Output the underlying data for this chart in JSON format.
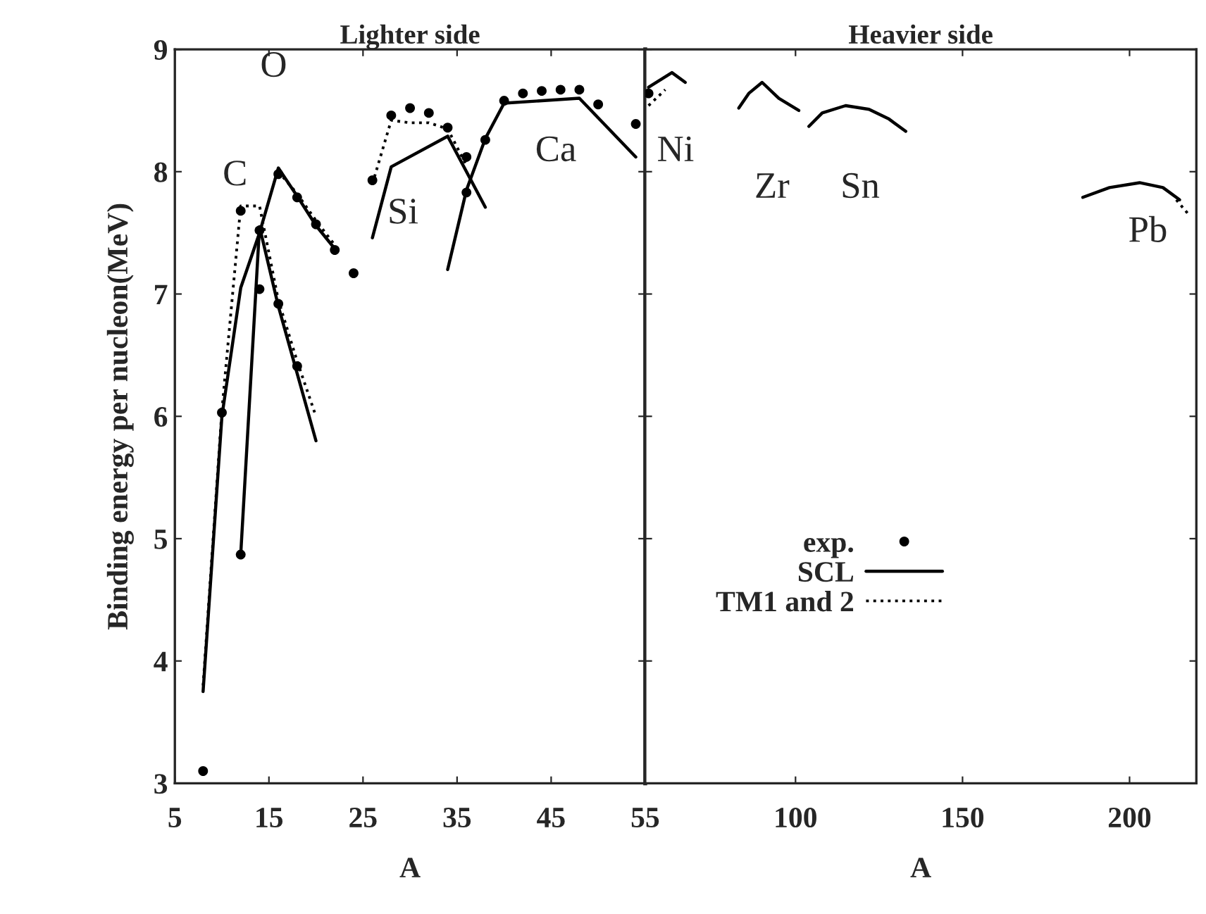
{
  "chart_data": [
    {
      "type": "line",
      "title": "Lighter side",
      "xlabel": "A",
      "ylabel": "Binding energy per nucleon(MeV)",
      "xlim": [
        5,
        55
      ],
      "xticks": [
        5,
        15,
        25,
        35,
        45,
        55
      ],
      "ylim": [
        3,
        9
      ],
      "yticks": [
        3,
        4,
        5,
        6,
        7,
        8,
        9
      ],
      "grid": false,
      "series": [
        {
          "type": "line",
          "line_style": "solid",
          "marker": "none",
          "color": "#000000",
          "x": [
            8,
            10,
            12,
            14,
            16,
            18,
            20,
            22
          ],
          "values": [
            3.75,
            6.0,
            7.05,
            7.5,
            8.03,
            7.8,
            7.56,
            7.37
          ]
        },
        {
          "type": "line",
          "line_style": "solid",
          "marker": "none",
          "color": "#000000",
          "x": [
            12,
            14,
            16,
            18,
            20
          ],
          "values": [
            4.87,
            7.55,
            6.9,
            6.35,
            5.8
          ]
        },
        {
          "type": "line",
          "line_style": "solid",
          "marker": "none",
          "color": "#000000",
          "x": [
            26,
            28,
            34,
            38
          ],
          "values": [
            7.46,
            8.04,
            8.29,
            7.71
          ]
        },
        {
          "type": "line",
          "line_style": "solid",
          "marker": "none",
          "color": "#000000",
          "x": [
            34,
            36,
            38,
            40,
            48,
            54
          ],
          "values": [
            7.2,
            7.85,
            8.27,
            8.56,
            8.6,
            8.12
          ]
        },
        {
          "type": "line",
          "line_style": "dotted",
          "marker": "none",
          "color": "#000000",
          "x": [
            8,
            10,
            12,
            14,
            16,
            18,
            20
          ],
          "values": [
            3.8,
            6.05,
            7.72,
            7.72,
            6.95,
            6.45,
            6.0
          ]
        },
        {
          "type": "line",
          "line_style": "dotted",
          "marker": "none",
          "color": "#000000",
          "x": [
            16,
            18,
            20,
            22
          ],
          "values": [
            8.0,
            7.82,
            7.6,
            7.4
          ]
        },
        {
          "type": "line",
          "line_style": "dotted",
          "marker": "none",
          "color": "#000000",
          "x": [
            26,
            28,
            30,
            32,
            34,
            36
          ],
          "values": [
            7.9,
            8.42,
            8.4,
            8.4,
            8.35,
            8.05
          ]
        },
        {
          "type": "scatter",
          "marker": "circle",
          "color": "#000000",
          "x": [
            8,
            10,
            12,
            12,
            14,
            14,
            16,
            16,
            18,
            18,
            20,
            22,
            24,
            26,
            28,
            30,
            32,
            34,
            36,
            36,
            38,
            40,
            42,
            44,
            46,
            48,
            50,
            54
          ],
          "values": [
            3.1,
            6.03,
            7.68,
            4.87,
            7.52,
            7.04,
            7.98,
            6.92,
            7.79,
            6.41,
            7.57,
            7.36,
            7.17,
            7.93,
            8.46,
            8.52,
            8.48,
            8.36,
            8.12,
            7.83,
            8.26,
            8.58,
            8.64,
            8.66,
            8.67,
            8.67,
            8.55,
            8.39
          ]
        }
      ],
      "annotations": [
        "C",
        "O",
        "Si",
        "Ca"
      ]
    },
    {
      "type": "line",
      "title": "Heavier side",
      "xlabel": "A",
      "xlim": [
        55,
        220
      ],
      "xticks": [
        100,
        150,
        200
      ],
      "ylim": [
        3,
        9
      ],
      "yticks": [
        3,
        4,
        5,
        6,
        7,
        8,
        9
      ],
      "tick_labels": "x",
      "grid": false,
      "legend": "bottom left",
      "series": [
        {
          "type": "scatter",
          "name": "exp.",
          "marker": "circle",
          "color": "#000000",
          "x": [
            56
          ],
          "values": [
            8.64
          ]
        },
        {
          "type": "line",
          "name": "SCL",
          "line_style": "solid",
          "marker": "none",
          "color": "#000000",
          "x": [
            56,
            63,
            67
          ],
          "values": [
            8.69,
            8.81,
            8.73
          ]
        },
        {
          "type": "line",
          "line_style": "solid",
          "marker": "none",
          "color": "#000000",
          "x": [
            83,
            86,
            90,
            95,
            101
          ],
          "values": [
            8.52,
            8.64,
            8.73,
            8.6,
            8.5
          ]
        },
        {
          "type": "line",
          "line_style": "solid",
          "marker": "none",
          "color": "#000000",
          "x": [
            104,
            108,
            115,
            122,
            128,
            133
          ],
          "values": [
            8.37,
            8.48,
            8.54,
            8.51,
            8.43,
            8.33
          ]
        },
        {
          "type": "line",
          "line_style": "solid",
          "marker": "none",
          "color": "#000000",
          "x": [
            186,
            194,
            203,
            210,
            215
          ],
          "values": [
            7.79,
            7.87,
            7.91,
            7.87,
            7.77
          ]
        },
        {
          "type": "line",
          "name": "TM1 and 2",
          "line_style": "dotted",
          "marker": "none",
          "color": "#000000",
          "x": [
            56,
            61
          ],
          "values": [
            8.54,
            8.67
          ]
        },
        {
          "type": "line",
          "line_style": "dotted",
          "marker": "none",
          "color": "#000000",
          "x": [
            214,
            218
          ],
          "values": [
            7.77,
            7.64
          ]
        }
      ],
      "annotations": [
        "Ni",
        "Zr",
        "Sn",
        "Pb"
      ]
    }
  ]
}
